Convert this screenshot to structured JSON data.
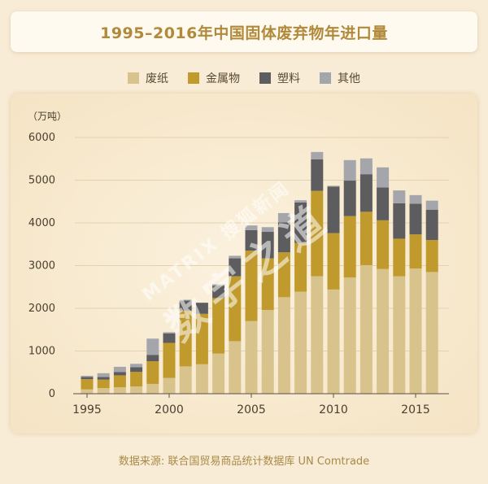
{
  "title": "1995–2016年中国固体废弃物年进口量",
  "unit_label": "（万吨）",
  "source": "数据来源: 联合国贸易商品统计数据库 UN Comtrade",
  "watermark": {
    "line1": "MATRIX 搜狐新闻",
    "line2": "数字之道"
  },
  "colors": {
    "background": "#f8ecd6",
    "title_text": "#b08a3a",
    "paper": "#d9c38d",
    "metal": "#c09a2c",
    "plastic": "#5d5d5f",
    "other": "#a5a6ab"
  },
  "chart_data": {
    "type": "bar",
    "stacked": true,
    "x": [
      1995,
      1996,
      1997,
      1998,
      1999,
      2000,
      2001,
      2002,
      2003,
      2004,
      2005,
      2006,
      2007,
      2008,
      2009,
      2010,
      2011,
      2012,
      2013,
      2014,
      2015,
      2016
    ],
    "x_tick_labels": [
      "1995",
      "2000",
      "2005",
      "2010",
      "2015"
    ],
    "y_ticks": [
      0,
      1000,
      2000,
      3000,
      4000,
      5000,
      6000
    ],
    "ylim": [
      0,
      6000
    ],
    "ylabel": "（万吨）",
    "series": [
      {
        "name": "废纸",
        "color": "#d9c38d",
        "values": [
          100,
          130,
          150,
          170,
          230,
          370,
          640,
          690,
          940,
          1230,
          1700,
          1960,
          2260,
          2390,
          2750,
          2440,
          2720,
          3010,
          2920,
          2750,
          2930,
          2850
        ]
      },
      {
        "name": "金属物",
        "color": "#c09a2c",
        "values": [
          240,
          200,
          280,
          340,
          530,
          820,
          1300,
          1180,
          1300,
          1520,
          1650,
          1210,
          1050,
          1140,
          2000,
          1320,
          1440,
          1250,
          1140,
          880,
          800,
          750
        ]
      },
      {
        "name": "塑料",
        "color": "#5d5d5f",
        "values": [
          50,
          60,
          80,
          110,
          150,
          220,
          240,
          260,
          290,
          420,
          480,
          620,
          700,
          950,
          740,
          1090,
          830,
          880,
          770,
          830,
          720,
          710
        ]
      },
      {
        "name": "其他",
        "color": "#a5a6ab",
        "values": [
          30,
          90,
          120,
          80,
          380,
          30,
          20,
          0,
          30,
          60,
          110,
          110,
          220,
          50,
          170,
          20,
          480,
          370,
          470,
          300,
          200,
          210
        ]
      }
    ]
  }
}
